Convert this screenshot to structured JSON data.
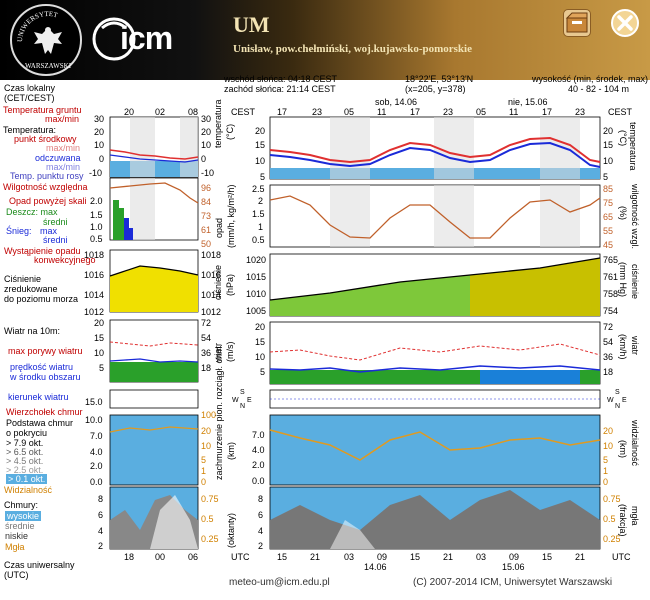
{
  "header": {
    "title": "UM",
    "subtitle": "Unisław, pow.chełmiński, woj.kujawsko-pomorskie",
    "logo_text_top": "UNIWERSYTET",
    "logo_text_bottom": "WARSZAWSKI",
    "brand": "icm"
  },
  "meta": {
    "sunrise": "wschód słońca: 04:18 CEST",
    "sunset": "zachód słońca: 21:14 CEST",
    "coords": "18°22'E, 53°13'N",
    "grid": "(x=205, y=378)",
    "elev_label": "wysokość (min, środek, max)",
    "elev_value": "40 - 82 - 104 m",
    "day1": "sob, 14.06",
    "day2": "nie, 15.06",
    "day2_bottom": "14.06",
    "day3_bottom": "15.06"
  },
  "legend": {
    "czas_lokalny": "Czas lokalny",
    "czas_lokalny2": "(CET/CEST)",
    "temp_gruntu": "Temperatura gruntu",
    "maxmin": "max/min",
    "temperatura": "Temperatura:",
    "punkt_srodkowy": "punkt środkowy",
    "odczuwana": "odczuwana",
    "temp_rosy": "Temp. punktu rosy",
    "wilgotnosc": "Wilgotność względna",
    "opad_powyzej": "Opad powyżej skali",
    "deszcz": "Deszcz: max",
    "srednio": "średni",
    "snieg": "Śnieg:",
    "max": "max",
    "wystapienie": "Wystąpienie opadu",
    "konwekcyjnego": "konwekcyjnego",
    "cisnienie": "Ciśnienie",
    "zredukowane": "zredukowane",
    "do_poziomu": "do poziomu morza",
    "wiatr": "Wiatr na 10m:",
    "max_porywy": "max porywy wiatru",
    "predkosc": "prędkość wiatru",
    "w_srodku": "w środku obszaru",
    "kierunek": "kierunek wiatru",
    "wierzcholek": "Wierzchołek chmur",
    "podstawa": "Podstawa chmur",
    "o_pokryciu": "o pokryciu",
    "ok79": "> 7.9 okt.",
    "ok65": "> 6.5 okt.",
    "ok45": "> 4.5 okt.",
    "ok25": "> 2.5 okt.",
    "ok01": "> 0.1 okt.",
    "widzialnosc": "Widzialność",
    "chmury": "Chmury:",
    "wysokie": "wysokie",
    "srednie": "średnie",
    "niskie": "niskie",
    "mgla": "Mgła",
    "czas_uniwersalny": "Czas uniwersalny",
    "utc": "(UTC)"
  },
  "axes": {
    "cest": "CEST",
    "utc": "UTC",
    "top_times_small": [
      "20",
      "02",
      "08"
    ],
    "top_times_main": [
      "17",
      "23",
      "05",
      "11",
      "17",
      "23",
      "05",
      "11",
      "17",
      "23"
    ],
    "bottom_times_small": [
      "18",
      "00",
      "06"
    ],
    "bottom_times_main": [
      "15",
      "21",
      "03",
      "09",
      "15",
      "21",
      "03",
      "09",
      "15",
      "21"
    ],
    "temp_left": [
      "30",
      "20",
      "10",
      "0",
      "-10"
    ],
    "temp_right": [
      "30",
      "20",
      "10",
      "0",
      "-10"
    ],
    "temp_main": [
      "20",
      "15",
      "10",
      "5"
    ],
    "precip_left": [
      "2.0",
      "1.5",
      "1.0",
      "0.5"
    ],
    "rh_right": [
      "96",
      "84",
      "73",
      "61",
      "50"
    ],
    "precip_main": [
      "2.5",
      "2",
      "1.5",
      "1",
      "0.5"
    ],
    "rh_main": [
      "85",
      "75",
      "65",
      "55",
      "45"
    ],
    "press_left": [
      "1018",
      "1016",
      "1014",
      "1012"
    ],
    "press_right": [
      "1018",
      "1016",
      "1014",
      "1012"
    ],
    "press_main": [
      "1020",
      "1015",
      "1010",
      "1005"
    ],
    "press_mmhg": [
      "765",
      "761",
      "758",
      "754"
    ],
    "wind_left": [
      "20",
      "15",
      "10",
      "5"
    ],
    "wind_right": [
      "72",
      "54",
      "36",
      "18"
    ],
    "wind_main": [
      "20",
      "15",
      "10",
      "5"
    ],
    "wind_kmh": [
      "72",
      "54",
      "36",
      "18"
    ],
    "cloud_left": [
      "15.0",
      "10.0",
      "7.0",
      "4.0",
      "2.0",
      "0.0"
    ],
    "vis_right": [
      "100",
      "20",
      "10",
      "5",
      "1",
      "0"
    ],
    "cloud_main": [
      "7.0",
      "4.0",
      "2.0",
      "0.0"
    ],
    "vis_main": [
      "20",
      "10",
      "5",
      "1",
      "0"
    ],
    "cover_left": [
      "8",
      "6",
      "4",
      "2"
    ],
    "fog_right": [
      "0.75",
      "0.5",
      "0.25"
    ],
    "cover_main": [
      "8",
      "6",
      "4",
      "2"
    ],
    "fog_main": [
      "0.75",
      "0.5",
      "0.25"
    ],
    "lbl_temperatura": "temperatura",
    "lbl_temp_unit": "(°C)",
    "lbl_opad": "opad",
    "lbl_opad_unit": "(mm/h, kg/m²/h)",
    "lbl_wilg": "wilgotność wzgl.",
    "lbl_wilg_unit": "(%)",
    "lbl_cisnienie": "ciśnienie",
    "lbl_cis_unit": "(hPa)",
    "lbl_cis_mm": "(mm Hg)",
    "lbl_wiatr": "wiatr",
    "lbl_wiatr_unit": "(m/s)",
    "lbl_wiatr_kmh": "(km/h)",
    "lbl_zachm": "zachmurzenie pion. rozciągł. chm.",
    "lbl_km": "(km)",
    "lbl_widz": "widzialność",
    "lbl_okt": "(oktanty)",
    "lbl_mgla": "mgła",
    "lbl_frakcja": "(frakcja)",
    "wind_s": "S",
    "wind_n": "N",
    "wind_w": "W",
    "wind_e": "E"
  },
  "footer": {
    "email": "meteo-um@icm.edu.pl",
    "copyright": "(C) 2007-2014 ICM, Uniwersytet Warszawski"
  },
  "colors": {
    "panel_blue": "#5aaee0",
    "temp_red": "#e03030",
    "temp_blue": "#1a2ad8",
    "rh_line": "#c0602a",
    "press_fill": "#f0e000",
    "wind_green": "#2aa02a"
  }
}
